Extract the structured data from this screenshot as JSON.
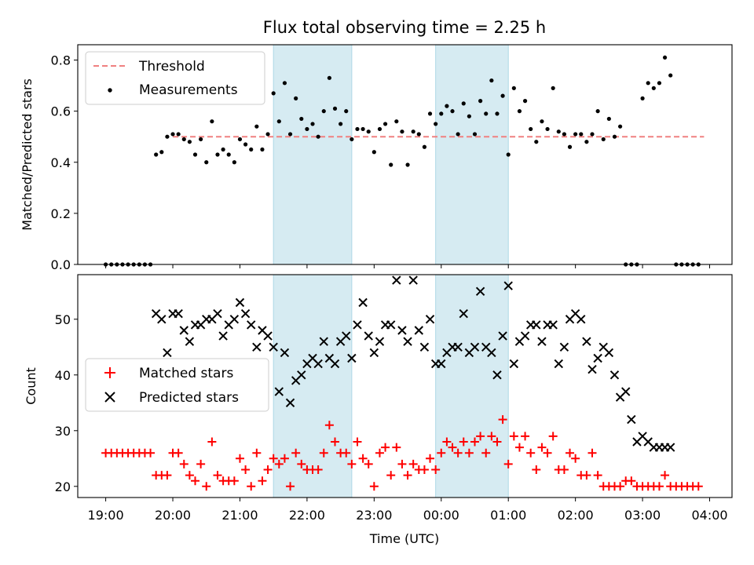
{
  "chart_data": [
    {
      "type": "scatter",
      "title": "Flux total observing time = 2.25 h",
      "ylabel": "Matched/Predicted stars",
      "xlabel": "",
      "xlim": [
        "18:35",
        "04:20"
      ],
      "ylim": [
        0.0,
        0.86
      ],
      "yticks": [
        "0.0",
        "0.2",
        "0.4",
        "0.6",
        "0.8"
      ],
      "legend": {
        "placement": "top-left",
        "entries": [
          "Threshold",
          "Measurements"
        ]
      },
      "threshold": {
        "name": "Threshold",
        "value": 0.5,
        "x_start": "20:00",
        "x_end": "03:55",
        "color": "#f08080"
      },
      "shaded_intervals": [
        [
          "21:30",
          "22:40"
        ],
        [
          "23:55",
          "01:00"
        ]
      ],
      "series": [
        {
          "name": "Measurements",
          "color": "#000000",
          "x": [
            "19:00",
            "19:05",
            "19:10",
            "19:15",
            "19:20",
            "19:25",
            "19:30",
            "19:35",
            "19:40",
            "19:45",
            "19:50",
            "19:55",
            "20:00",
            "20:05",
            "20:10",
            "20:15",
            "20:20",
            "20:25",
            "20:30",
            "20:35",
            "20:40",
            "20:45",
            "20:50",
            "20:55",
            "21:00",
            "21:05",
            "21:10",
            "21:15",
            "21:20",
            "21:25",
            "21:30",
            "21:35",
            "21:40",
            "21:45",
            "21:50",
            "21:55",
            "22:00",
            "22:05",
            "22:10",
            "22:15",
            "22:20",
            "22:25",
            "22:30",
            "22:35",
            "22:40",
            "22:45",
            "22:50",
            "22:55",
            "23:00",
            "23:05",
            "23:10",
            "23:15",
            "23:20",
            "23:25",
            "23:30",
            "23:35",
            "23:40",
            "23:45",
            "23:50",
            "23:55",
            "00:00",
            "00:05",
            "00:10",
            "00:15",
            "00:20",
            "00:25",
            "00:30",
            "00:35",
            "00:40",
            "00:45",
            "00:50",
            "00:55",
            "01:00",
            "01:05",
            "01:10",
            "01:15",
            "01:20",
            "01:25",
            "01:30",
            "01:35",
            "01:40",
            "01:45",
            "01:50",
            "01:55",
            "02:00",
            "02:05",
            "02:10",
            "02:15",
            "02:20",
            "02:25",
            "02:30",
            "02:35",
            "02:40",
            "02:45",
            "02:50",
            "02:55",
            "03:00",
            "03:05",
            "03:10",
            "03:15",
            "03:20",
            "03:25",
            "03:30",
            "03:35",
            "03:40",
            "03:45",
            "03:50"
          ],
          "y": [
            0.0,
            0.0,
            0.0,
            0.0,
            0.0,
            0.0,
            0.0,
            0.0,
            0.0,
            0.43,
            0.44,
            0.5,
            0.51,
            0.51,
            0.49,
            0.48,
            0.43,
            0.49,
            0.4,
            0.56,
            0.43,
            0.45,
            0.43,
            0.4,
            0.49,
            0.47,
            0.45,
            0.54,
            0.45,
            0.51,
            0.67,
            0.56,
            0.71,
            0.51,
            0.65,
            0.57,
            0.53,
            0.55,
            0.5,
            0.6,
            0.73,
            0.61,
            0.55,
            0.6,
            0.49,
            0.53,
            0.53,
            0.52,
            0.44,
            0.53,
            0.55,
            0.39,
            0.56,
            0.52,
            0.39,
            0.52,
            0.51,
            0.46,
            0.59,
            0.55,
            0.59,
            0.62,
            0.6,
            0.51,
            0.63,
            0.58,
            0.51,
            0.64,
            0.59,
            0.72,
            0.59,
            0.66,
            0.43,
            0.69,
            0.6,
            0.64,
            0.53,
            0.48,
            0.56,
            0.53,
            0.69,
            0.52,
            0.51,
            0.46,
            0.51,
            0.51,
            0.48,
            0.51,
            0.6,
            0.49,
            0.57,
            0.5,
            0.54,
            0.0,
            0.0,
            0.0,
            0.65,
            0.71,
            0.69,
            0.71,
            0.81,
            0.74,
            0.0,
            0.0,
            0.0,
            0.0,
            0.0
          ]
        }
      ]
    },
    {
      "type": "scatter",
      "title": "",
      "ylabel": "Count",
      "xlabel": "Time (UTC)",
      "xlim": [
        "18:35",
        "04:20"
      ],
      "ylim": [
        18,
        58
      ],
      "xticks": [
        "19:00",
        "20:00",
        "21:00",
        "22:00",
        "23:00",
        "00:00",
        "01:00",
        "02:00",
        "03:00",
        "04:00"
      ],
      "yticks": [
        "20",
        "30",
        "40",
        "50"
      ],
      "legend": {
        "placement": "center-left",
        "entries": [
          "Matched stars",
          "Predicted stars"
        ]
      },
      "shaded_intervals": [
        [
          "21:30",
          "22:40"
        ],
        [
          "23:55",
          "01:00"
        ]
      ],
      "series": [
        {
          "name": "Matched stars",
          "marker": "+",
          "color": "#ff0000",
          "x": [
            "19:00",
            "19:05",
            "19:10",
            "19:15",
            "19:20",
            "19:25",
            "19:30",
            "19:35",
            "19:40",
            "19:45",
            "19:50",
            "19:55",
            "20:00",
            "20:05",
            "20:10",
            "20:15",
            "20:20",
            "20:25",
            "20:30",
            "20:35",
            "20:40",
            "20:45",
            "20:50",
            "20:55",
            "21:00",
            "21:05",
            "21:10",
            "21:15",
            "21:20",
            "21:25",
            "21:30",
            "21:35",
            "21:40",
            "21:45",
            "21:50",
            "21:55",
            "22:00",
            "22:05",
            "22:10",
            "22:15",
            "22:20",
            "22:25",
            "22:30",
            "22:35",
            "22:40",
            "22:45",
            "22:50",
            "22:55",
            "23:00",
            "23:05",
            "23:10",
            "23:15",
            "23:20",
            "23:25",
            "23:30",
            "23:35",
            "23:40",
            "23:45",
            "23:50",
            "23:55",
            "00:00",
            "00:05",
            "00:10",
            "00:15",
            "00:20",
            "00:25",
            "00:30",
            "00:35",
            "00:40",
            "00:45",
            "00:50",
            "00:55",
            "01:00",
            "01:05",
            "01:10",
            "01:15",
            "01:20",
            "01:25",
            "01:30",
            "01:35",
            "01:40",
            "01:45",
            "01:50",
            "01:55",
            "02:00",
            "02:05",
            "02:10",
            "02:15",
            "02:20",
            "02:25",
            "02:30",
            "02:35",
            "02:40",
            "02:45",
            "02:50",
            "02:55",
            "03:00",
            "03:05",
            "03:10",
            "03:15",
            "03:20",
            "03:25",
            "03:30",
            "03:35",
            "03:40",
            "03:45",
            "03:50"
          ],
          "y": [
            26,
            26,
            26,
            26,
            26,
            26,
            26,
            26,
            26,
            22,
            22,
            22,
            26,
            26,
            24,
            22,
            21,
            24,
            20,
            28,
            22,
            21,
            21,
            21,
            25,
            23,
            20,
            26,
            21,
            23,
            25,
            24,
            25,
            20,
            26,
            24,
            23,
            23,
            23,
            26,
            31,
            28,
            26,
            26,
            24,
            28,
            25,
            24,
            20,
            26,
            27,
            22,
            27,
            24,
            22,
            24,
            23,
            23,
            25,
            23,
            26,
            28,
            27,
            26,
            28,
            26,
            28,
            29,
            26,
            29,
            28,
            32,
            24,
            29,
            27,
            29,
            26,
            23,
            27,
            26,
            29,
            23,
            23,
            26,
            25,
            22,
            22,
            26,
            22,
            20,
            20,
            20,
            20,
            21,
            21,
            20,
            20,
            20,
            20,
            20,
            22,
            20,
            20,
            20,
            20,
            20,
            20
          ]
        },
        {
          "name": "Predicted stars",
          "marker": "x",
          "color": "#000000",
          "x": [
            "19:45",
            "19:50",
            "19:55",
            "20:00",
            "20:05",
            "20:10",
            "20:15",
            "20:20",
            "20:25",
            "20:30",
            "20:35",
            "20:40",
            "20:45",
            "20:50",
            "20:55",
            "21:00",
            "21:05",
            "21:10",
            "21:15",
            "21:20",
            "21:25",
            "21:30",
            "21:35",
            "21:40",
            "21:45",
            "21:50",
            "21:55",
            "22:00",
            "22:05",
            "22:10",
            "22:15",
            "22:20",
            "22:25",
            "22:30",
            "22:35",
            "22:40",
            "22:45",
            "22:50",
            "22:55",
            "23:00",
            "23:05",
            "23:10",
            "23:15",
            "23:20",
            "23:25",
            "23:30",
            "23:35",
            "23:40",
            "23:45",
            "23:50",
            "23:55",
            "00:00",
            "00:05",
            "00:10",
            "00:15",
            "00:20",
            "00:25",
            "00:30",
            "00:35",
            "00:40",
            "00:45",
            "00:50",
            "00:55",
            "01:00",
            "01:05",
            "01:10",
            "01:15",
            "01:20",
            "01:25",
            "01:30",
            "01:35",
            "01:40",
            "01:45",
            "01:50",
            "01:55",
            "02:00",
            "02:05",
            "02:10",
            "02:15",
            "02:20",
            "02:25",
            "02:30",
            "02:35",
            "02:40",
            "02:45",
            "02:50",
            "02:55",
            "03:00",
            "03:05",
            "03:10",
            "03:15",
            "03:20",
            "03:25"
          ],
          "y": [
            51,
            50,
            44,
            51,
            51,
            48,
            46,
            49,
            49,
            50,
            50,
            51,
            47,
            49,
            50,
            53,
            51,
            49,
            45,
            48,
            47,
            45,
            37,
            44,
            35,
            39,
            40,
            42,
            43,
            42,
            46,
            43,
            42,
            46,
            47,
            43,
            49,
            53,
            47,
            44,
            46,
            49,
            49,
            57,
            48,
            46,
            57,
            48,
            45,
            50,
            42,
            42,
            44,
            45,
            45,
            51,
            44,
            45,
            55,
            45,
            44,
            40,
            47,
            56,
            42,
            46,
            47,
            49,
            49,
            46,
            49,
            49,
            42,
            45,
            50,
            51,
            50,
            46,
            41,
            43,
            45,
            44,
            40,
            36,
            37,
            32,
            28,
            29,
            28,
            27,
            27,
            27,
            27
          ]
        }
      ]
    }
  ]
}
